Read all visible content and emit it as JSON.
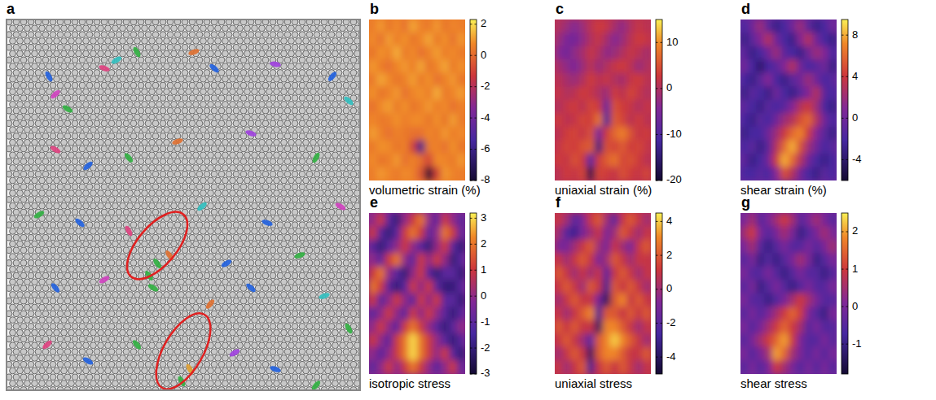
{
  "figure_panel": {
    "letter": "a"
  },
  "chart_data": [
    {
      "type": "heatmap",
      "letter": "b",
      "title": "volumetric strain (%)",
      "z": [
        [
          0.5,
          1,
          0.3,
          0.8,
          0.2,
          1.2,
          0.6,
          0.4,
          1,
          0.3,
          0.7,
          0.5
        ],
        [
          0.8,
          0.2,
          1.1,
          0.5,
          0.9,
          0.3,
          0.7,
          1.2,
          0.4,
          0.9,
          0.2,
          1
        ],
        [
          0.3,
          0.9,
          0.6,
          1.3,
          0.4,
          0.8,
          0.2,
          0.6,
          1.1,
          0.5,
          0.8,
          0.4
        ],
        [
          1,
          0.5,
          0.2,
          0.7,
          1,
          0.5,
          1.2,
          0.3,
          0.7,
          1.2,
          0.4,
          0.9
        ],
        [
          0.4,
          1.2,
          0.8,
          0.3,
          0.6,
          1.1,
          0.4,
          0.9,
          0.2,
          0.6,
          1,
          0.3
        ],
        [
          0.9,
          0.3,
          0.6,
          1,
          0.2,
          0.7,
          0.9,
          0.5,
          1.3,
          0.4,
          0.7,
          1.1
        ],
        [
          0.2,
          0.8,
          1.1,
          0.4,
          0.9,
          0.3,
          0.6,
          1,
          0.5,
          0.8,
          0.2,
          0.6
        ],
        [
          0.7,
          0.4,
          0.5,
          0.9,
          0.5,
          0.8,
          0.8,
          0.3,
          0.9,
          0.3,
          1.1,
          0.4
        ],
        [
          1.1,
          0.6,
          0.2,
          0.6,
          0.4,
          0.2,
          0.2,
          0.7,
          0.4,
          1,
          0.5,
          0.8
        ],
        [
          0.4,
          0.9,
          0.8,
          0.3,
          0.6,
          -1,
          -6,
          0.5,
          0.6,
          0.2,
          0.9,
          0.3
        ],
        [
          0.8,
          0.3,
          0.5,
          1,
          0.2,
          0.6,
          0.1,
          -1,
          0.8,
          0.7,
          0.4,
          1
        ],
        [
          0.5,
          1,
          0.7,
          0.4,
          0.8,
          0.6,
          -0.5,
          -8,
          -1,
          1,
          0.6,
          0.5
        ]
      ],
      "colorbar": {
        "range": [
          -8,
          2.3
        ],
        "ticks": [
          2,
          0,
          -2,
          -4,
          -6,
          -8
        ]
      }
    },
    {
      "type": "heatmap",
      "letter": "c",
      "title": "uniaxial strain (%)",
      "z": [
        [
          0,
          -2,
          -4,
          -2,
          1,
          3,
          2,
          -1,
          -3,
          0,
          2,
          1
        ],
        [
          -2,
          -5,
          -6,
          -3,
          0,
          2,
          -1,
          -4,
          -2,
          1,
          3,
          2
        ],
        [
          -4,
          -6,
          -3,
          -1,
          2,
          0,
          -3,
          -2,
          0,
          2,
          1,
          -1
        ],
        [
          -1,
          -3,
          -5,
          -2,
          1,
          -2,
          0,
          2,
          3,
          1,
          -2,
          0
        ],
        [
          1,
          -1,
          -2,
          0,
          3,
          1,
          2,
          0,
          -1,
          2,
          3,
          1
        ],
        [
          2,
          0,
          1,
          3,
          2,
          0,
          -2,
          3,
          1,
          4,
          2,
          0
        ],
        [
          0,
          2,
          3,
          1,
          4,
          3,
          -8,
          5,
          3,
          2,
          0,
          2
        ],
        [
          3,
          1,
          2,
          4,
          3,
          8,
          -12,
          6,
          4,
          1,
          3,
          1
        ],
        [
          1,
          3,
          4,
          2,
          5,
          -6,
          3,
          7,
          9,
          5,
          2,
          3
        ],
        [
          2,
          4,
          3,
          5,
          6,
          -14,
          5,
          4,
          6,
          3,
          4,
          2
        ],
        [
          3,
          2,
          5,
          3,
          -10,
          3,
          6,
          8,
          4,
          5,
          3,
          1
        ],
        [
          1,
          3,
          2,
          4,
          -18,
          4,
          3,
          2,
          5,
          3,
          2,
          4
        ]
      ],
      "colorbar": {
        "range": [
          -20,
          15
        ],
        "ticks": [
          10,
          0,
          -10,
          -20
        ]
      }
    },
    {
      "type": "heatmap",
      "letter": "d",
      "title": "shear strain (%)",
      "z": [
        [
          -2,
          0,
          2,
          -1,
          -3,
          -2,
          0,
          2,
          -1,
          -3,
          -2,
          0
        ],
        [
          -3,
          -1,
          1,
          3,
          0,
          -2,
          -3,
          1,
          3,
          0,
          -2,
          -3
        ],
        [
          -1,
          -3,
          -2,
          0,
          2,
          -1,
          -2,
          -3,
          0,
          2,
          1,
          -2
        ],
        [
          0,
          -2,
          -4,
          -2,
          -1,
          1,
          3,
          0,
          -2,
          -1,
          0,
          -3
        ],
        [
          -2,
          -3,
          -1,
          1,
          -2,
          -3,
          -1,
          0,
          2,
          0,
          -2,
          -1
        ],
        [
          -3,
          -1,
          -2,
          -3,
          0,
          -2,
          -3,
          -1,
          1,
          3,
          -1,
          -2
        ],
        [
          -1,
          -2,
          -3,
          -1,
          -2,
          -1,
          1,
          3,
          4,
          2,
          -2,
          -3
        ],
        [
          -2,
          -3,
          -1,
          -2,
          0,
          2,
          3,
          5,
          6,
          3,
          0,
          -2
        ],
        [
          -3,
          -2,
          -2,
          0,
          2,
          4,
          6,
          7,
          4,
          1,
          -1,
          -3
        ],
        [
          -2,
          -1,
          -3,
          -1,
          3,
          6,
          8,
          5,
          2,
          0,
          -2,
          -1
        ],
        [
          -1,
          -3,
          -2,
          0,
          4,
          8,
          6,
          3,
          0,
          -2,
          -3,
          -2
        ],
        [
          -2,
          -2,
          -1,
          -2,
          1,
          5,
          3,
          0,
          -2,
          -3,
          -1,
          -2
        ]
      ],
      "colorbar": {
        "range": [
          -6,
          9.5
        ],
        "ticks": [
          8,
          4,
          0,
          -4
        ]
      }
    },
    {
      "type": "heatmap",
      "letter": "e",
      "title": "isotropic stress",
      "z": [
        [
          0,
          1,
          -1,
          -2,
          0,
          1,
          2,
          0,
          -1,
          1,
          0,
          -1
        ],
        [
          1,
          -1,
          -2,
          -1,
          1,
          2,
          1,
          -1,
          0,
          2,
          1,
          -1
        ],
        [
          -1,
          -2,
          -1,
          0,
          1,
          0,
          -1,
          -2,
          0,
          1,
          -1,
          -2
        ],
        [
          0,
          -1,
          1,
          2,
          0,
          -1,
          1,
          0,
          1,
          0,
          -2,
          -1
        ],
        [
          1,
          2,
          0,
          -1,
          -2,
          0,
          1,
          -1,
          -2,
          -1,
          -1,
          -2
        ],
        [
          2,
          1,
          -1,
          -2,
          -1,
          1,
          0,
          1,
          -1,
          -2,
          -2,
          -1
        ],
        [
          1,
          -1,
          0,
          1,
          0,
          -1,
          1,
          0,
          1,
          -1,
          -1,
          -2
        ],
        [
          -1,
          0,
          1,
          0,
          -1,
          1,
          0,
          1,
          0,
          -1,
          -2,
          -1
        ],
        [
          0,
          1,
          0,
          -1,
          1,
          2,
          1,
          0,
          -1,
          -2,
          -1,
          0
        ],
        [
          1,
          0,
          -1,
          1,
          2,
          3,
          2,
          1,
          0,
          -1,
          -2,
          -1
        ],
        [
          0,
          -1,
          0,
          1,
          2,
          3,
          2,
          1,
          0,
          1,
          -1,
          -2
        ],
        [
          -1,
          0,
          1,
          0,
          1,
          2,
          1,
          0,
          -1,
          0,
          1,
          -1
        ]
      ],
      "colorbar": {
        "range": [
          -3,
          3.2
        ],
        "ticks": [
          3,
          2,
          1,
          0,
          -1,
          -2,
          -3
        ]
      }
    },
    {
      "type": "heatmap",
      "letter": "f",
      "title": "uniaxial stress",
      "z": [
        [
          1,
          0,
          -2,
          -1,
          1,
          2,
          0,
          -2,
          1,
          2,
          1,
          0
        ],
        [
          0,
          -2,
          -3,
          -1,
          0,
          1,
          -1,
          0,
          2,
          1,
          0,
          1
        ],
        [
          -1,
          -1,
          0,
          1,
          2,
          0,
          -1,
          1,
          0,
          -1,
          1,
          2
        ],
        [
          1,
          0,
          1,
          2,
          1,
          -1,
          0,
          2,
          1,
          0,
          1,
          1
        ],
        [
          2,
          1,
          0,
          1,
          0,
          1,
          -2,
          1,
          2,
          1,
          0,
          1
        ],
        [
          1,
          2,
          1,
          0,
          2,
          1,
          -3,
          2,
          1,
          2,
          1,
          0
        ],
        [
          0,
          1,
          2,
          1,
          1,
          -1,
          -4,
          2,
          3,
          1,
          2,
          1
        ],
        [
          1,
          0,
          1,
          2,
          3,
          -3,
          2,
          2,
          1,
          2,
          1,
          2
        ],
        [
          2,
          1,
          2,
          1,
          1,
          -4,
          3,
          3,
          2,
          1,
          0,
          1
        ],
        [
          1,
          2,
          1,
          0,
          -2,
          2,
          3,
          4,
          3,
          2,
          1,
          0
        ],
        [
          0,
          1,
          2,
          1,
          -4,
          2,
          3,
          3,
          2,
          1,
          1,
          2
        ],
        [
          1,
          0,
          1,
          2,
          -3,
          1,
          2,
          1,
          2,
          1,
          0,
          1
        ]
      ],
      "colorbar": {
        "range": [
          -5,
          4.5
        ],
        "ticks": [
          4,
          2,
          0,
          -2,
          -4
        ]
      }
    },
    {
      "type": "heatmap",
      "letter": "g",
      "title": "shear stress",
      "z": [
        [
          0,
          0.5,
          -0.5,
          0,
          0.5,
          1,
          0.5,
          -0.5,
          0,
          0.5,
          0,
          -0.5
        ],
        [
          0.5,
          1,
          0,
          -0.5,
          0,
          0.5,
          0,
          -1,
          -0.5,
          0,
          0.5,
          0
        ],
        [
          0,
          0.5,
          -0.5,
          -1,
          -0.5,
          0,
          -0.5,
          -0.5,
          0,
          -0.5,
          0,
          0.5
        ],
        [
          -0.5,
          0,
          -1,
          -0.5,
          -1,
          -0.5,
          0,
          0.5,
          0,
          -1,
          -0.5,
          0
        ],
        [
          0,
          -0.5,
          -0.5,
          0,
          -0.5,
          -1,
          -0.5,
          0,
          -0.5,
          -0.5,
          -1,
          -0.5
        ],
        [
          -0.5,
          0,
          -1,
          -0.5,
          0,
          -0.5,
          -1,
          -0.5,
          0,
          -0.5,
          -0.5,
          0
        ],
        [
          0,
          -0.5,
          -0.5,
          -1,
          -0.5,
          0,
          0.5,
          1,
          0.5,
          0,
          -0.5,
          -0.5
        ],
        [
          -0.5,
          0,
          -0.5,
          0,
          0.5,
          1,
          1.5,
          1,
          0,
          -0.5,
          -1,
          0
        ],
        [
          0,
          -0.5,
          0,
          0.5,
          1,
          1.5,
          1,
          0.5,
          -0.5,
          0,
          -0.5,
          -0.5
        ],
        [
          -0.5,
          0,
          0.5,
          1,
          1.5,
          2,
          1,
          0,
          -0.5,
          -0.5,
          0,
          -0.5
        ],
        [
          0,
          -0.5,
          0,
          0.5,
          2,
          1.5,
          0.5,
          0,
          -0.5,
          0,
          -0.5,
          0
        ],
        [
          -0.5,
          0,
          -0.5,
          0,
          1,
          0.5,
          0,
          -0.5,
          0,
          -0.5,
          0,
          -0.5
        ]
      ],
      "colorbar": {
        "range": [
          -1.8,
          2.5
        ],
        "ticks": [
          2,
          1,
          0,
          -1
        ]
      }
    }
  ]
}
